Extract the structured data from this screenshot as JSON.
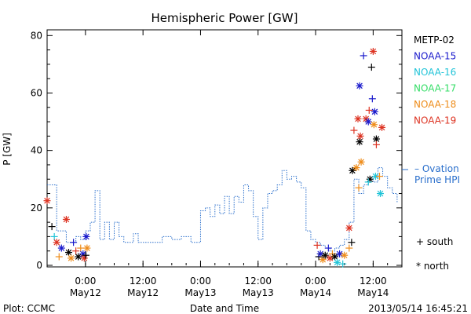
{
  "chart_data": {
    "type": "scatter",
    "title": "Hemispheric Power [GW]",
    "ylabel": "P [GW]",
    "xlabel": "Date and Time",
    "ylim": [
      0,
      82
    ],
    "yticks": [
      0,
      20,
      40,
      60,
      80
    ],
    "xlim": [
      "2013-05-11 16:00",
      "2013-05-14 18:00"
    ],
    "xticks": [
      {
        "time": "2013-05-12 00:00",
        "label1": "0:00",
        "label2": "May12"
      },
      {
        "time": "2013-05-12 12:00",
        "label1": "12:00",
        "label2": "May12"
      },
      {
        "time": "2013-05-13 00:00",
        "label1": "0:00",
        "label2": "May13"
      },
      {
        "time": "2013-05-13 12:00",
        "label1": "12:00",
        "label2": "May13"
      },
      {
        "time": "2013-05-14 00:00",
        "label1": "0:00",
        "label2": "May14"
      },
      {
        "time": "2013-05-14 12:00",
        "label1": "12:00",
        "label2": "May14"
      }
    ],
    "legend": [
      {
        "name": "METP-02",
        "color": "#000000"
      },
      {
        "name": "NOAA-15",
        "color": "#1a1acc"
      },
      {
        "name": "NOAA-16",
        "color": "#22c4d8"
      },
      {
        "name": "NOAA-17",
        "color": "#33dd66"
      },
      {
        "name": "NOAA-18",
        "color": "#ee8c1a"
      },
      {
        "name": "NOAA-19",
        "color": "#dd3322"
      }
    ],
    "ovation": {
      "label_line1": "– Ovation",
      "label_line2": "Prime HPI",
      "color": "#2a6fcc",
      "points": [
        [
          "2013-05-11 16:00",
          28
        ],
        [
          "2013-05-11 18:00",
          12
        ],
        [
          "2013-05-11 20:00",
          8
        ],
        [
          "2013-05-11 22:00",
          10
        ],
        [
          "2013-05-11 23:00",
          9
        ],
        [
          "2013-05-12 00:00",
          12
        ],
        [
          "2013-05-12 01:00",
          15
        ],
        [
          "2013-05-12 02:00",
          26
        ],
        [
          "2013-05-12 03:00",
          9
        ],
        [
          "2013-05-12 04:00",
          15
        ],
        [
          "2013-05-12 05:00",
          9
        ],
        [
          "2013-05-12 06:00",
          15
        ],
        [
          "2013-05-12 07:00",
          10
        ],
        [
          "2013-05-12 08:00",
          8
        ],
        [
          "2013-05-12 10:00",
          11
        ],
        [
          "2013-05-12 11:00",
          8
        ],
        [
          "2013-05-12 14:00",
          8
        ],
        [
          "2013-05-12 16:00",
          10
        ],
        [
          "2013-05-12 18:00",
          9
        ],
        [
          "2013-05-12 20:00",
          10
        ],
        [
          "2013-05-12 22:00",
          8
        ],
        [
          "2013-05-13 00:00",
          19
        ],
        [
          "2013-05-13 01:00",
          20
        ],
        [
          "2013-05-13 02:00",
          17
        ],
        [
          "2013-05-13 03:00",
          21
        ],
        [
          "2013-05-13 04:00",
          18
        ],
        [
          "2013-05-13 05:00",
          24
        ],
        [
          "2013-05-13 06:00",
          18
        ],
        [
          "2013-05-13 07:00",
          24
        ],
        [
          "2013-05-13 08:00",
          22
        ],
        [
          "2013-05-13 09:00",
          28
        ],
        [
          "2013-05-13 10:00",
          26
        ],
        [
          "2013-05-13 11:00",
          17
        ],
        [
          "2013-05-13 12:00",
          9
        ],
        [
          "2013-05-13 13:00",
          20
        ],
        [
          "2013-05-13 14:00",
          25
        ],
        [
          "2013-05-13 15:00",
          26
        ],
        [
          "2013-05-13 16:00",
          28
        ],
        [
          "2013-05-13 17:00",
          33
        ],
        [
          "2013-05-13 18:00",
          30
        ],
        [
          "2013-05-13 19:00",
          31
        ],
        [
          "2013-05-13 20:00",
          29
        ],
        [
          "2013-05-13 21:00",
          27
        ],
        [
          "2013-05-13 22:00",
          12
        ],
        [
          "2013-05-13 23:00",
          9
        ],
        [
          "2013-05-14 00:00",
          8
        ],
        [
          "2013-05-14 01:00",
          7
        ],
        [
          "2013-05-14 02:00",
          6
        ],
        [
          "2013-05-14 03:00",
          5
        ],
        [
          "2013-05-14 04:00",
          6
        ],
        [
          "2013-05-14 05:00",
          7
        ],
        [
          "2013-05-14 06:00",
          9
        ],
        [
          "2013-05-14 07:00",
          15
        ],
        [
          "2013-05-14 08:00",
          30
        ],
        [
          "2013-05-14 09:00",
          25
        ],
        [
          "2013-05-14 10:00",
          28
        ],
        [
          "2013-05-14 11:00",
          30
        ],
        [
          "2013-05-14 12:00",
          29
        ],
        [
          "2013-05-14 13:00",
          34
        ],
        [
          "2013-05-14 14:00",
          31
        ],
        [
          "2013-05-14 15:00",
          27
        ],
        [
          "2013-05-14 16:00",
          25
        ],
        [
          "2013-05-14 17:00",
          22
        ]
      ]
    },
    "markers": {
      "south_label": "+ south",
      "north_label": "* north"
    },
    "satellite_points": [
      {
        "sat": "NOAA-19",
        "hemi": "north",
        "t": "2013-05-11 16:00",
        "y": 22.5
      },
      {
        "sat": "METP-02",
        "hemi": "south",
        "t": "2013-05-11 17:00",
        "y": 13.5
      },
      {
        "sat": "NOAA-16",
        "hemi": "south",
        "t": "2013-05-11 17:30",
        "y": 10
      },
      {
        "sat": "NOAA-19",
        "hemi": "north",
        "t": "2013-05-11 18:00",
        "y": 8
      },
      {
        "sat": "NOAA-18",
        "hemi": "south",
        "t": "2013-05-11 18:30",
        "y": 3
      },
      {
        "sat": "NOAA-15",
        "hemi": "north",
        "t": "2013-05-11 19:00",
        "y": 6
      },
      {
        "sat": "NOAA-19",
        "hemi": "north",
        "t": "2013-05-11 20:00",
        "y": 16
      },
      {
        "sat": "METP-02",
        "hemi": "north",
        "t": "2013-05-11 20:30",
        "y": 4.5
      },
      {
        "sat": "NOAA-18",
        "hemi": "north",
        "t": "2013-05-11 21:00",
        "y": 2.5
      },
      {
        "sat": "NOAA-15",
        "hemi": "south",
        "t": "2013-05-11 21:30",
        "y": 8
      },
      {
        "sat": "NOAA-19",
        "hemi": "south",
        "t": "2013-05-11 22:00",
        "y": 5
      },
      {
        "sat": "METP-02",
        "hemi": "north",
        "t": "2013-05-11 22:30",
        "y": 3
      },
      {
        "sat": "NOAA-18",
        "hemi": "south",
        "t": "2013-05-11 23:00",
        "y": 6
      },
      {
        "sat": "NOAA-15",
        "hemi": "north",
        "t": "2013-05-11 23:30",
        "y": 4
      },
      {
        "sat": "NOAA-19",
        "hemi": "north",
        "t": "2013-05-11 23:45",
        "y": 2.5
      },
      {
        "sat": "NOAA-15",
        "hemi": "north",
        "t": "2013-05-12 00:10",
        "y": 10
      },
      {
        "sat": "METP-02",
        "hemi": "south",
        "t": "2013-05-12 00:05",
        "y": 3.5
      },
      {
        "sat": "NOAA-18",
        "hemi": "north",
        "t": "2013-05-12 00:20",
        "y": 6
      },
      {
        "sat": "NOAA-19",
        "hemi": "south",
        "t": "2013-05-14 00:20",
        "y": 7
      },
      {
        "sat": "METP-02",
        "hemi": "south",
        "t": "2013-05-14 00:40",
        "y": 3
      },
      {
        "sat": "NOAA-15",
        "hemi": "north",
        "t": "2013-05-14 01:00",
        "y": 4
      },
      {
        "sat": "NOAA-18",
        "hemi": "north",
        "t": "2013-05-14 01:30",
        "y": 2
      },
      {
        "sat": "METP-02",
        "hemi": "north",
        "t": "2013-05-14 02:00",
        "y": 3.5
      },
      {
        "sat": "NOAA-15",
        "hemi": "south",
        "t": "2013-05-14 02:40",
        "y": 6
      },
      {
        "sat": "NOAA-19",
        "hemi": "north",
        "t": "2013-05-14 03:00",
        "y": 2.5
      },
      {
        "sat": "NOAA-18",
        "hemi": "south",
        "t": "2013-05-14 03:30",
        "y": 4
      },
      {
        "sat": "METP-02",
        "hemi": "north",
        "t": "2013-05-14 04:00",
        "y": 3
      },
      {
        "sat": "NOAA-16",
        "hemi": "north",
        "t": "2013-05-14 04:30",
        "y": 1
      },
      {
        "sat": "NOAA-15",
        "hemi": "north",
        "t": "2013-05-14 05:00",
        "y": 4
      },
      {
        "sat": "NOAA-16",
        "hemi": "south",
        "t": "2013-05-14 05:40",
        "y": 0.5
      },
      {
        "sat": "NOAA-18",
        "hemi": "north",
        "t": "2013-05-14 06:00",
        "y": 3.5
      },
      {
        "sat": "NOAA-19",
        "hemi": "north",
        "t": "2013-05-14 07:00",
        "y": 13
      },
      {
        "sat": "METP-02",
        "hemi": "south",
        "t": "2013-05-14 07:30",
        "y": 8
      },
      {
        "sat": "NOAA-18",
        "hemi": "south",
        "t": "2013-05-14 07:00",
        "y": 6
      },
      {
        "sat": "METP-02",
        "hemi": "north",
        "t": "2013-05-14 07:40",
        "y": 33
      },
      {
        "sat": "NOAA-19",
        "hemi": "south",
        "t": "2013-05-14 08:00",
        "y": 47
      },
      {
        "sat": "NOAA-18",
        "hemi": "north",
        "t": "2013-05-14 08:30",
        "y": 34
      },
      {
        "sat": "NOAA-19",
        "hemi": "north",
        "t": "2013-05-14 08:50",
        "y": 51
      },
      {
        "sat": "NOAA-15",
        "hemi": "north",
        "t": "2013-05-14 09:10",
        "y": 62.5
      },
      {
        "sat": "METP-02",
        "hemi": "north",
        "t": "2013-05-14 09:10",
        "y": 43
      },
      {
        "sat": "NOAA-19",
        "hemi": "north",
        "t": "2013-05-14 09:20",
        "y": 45
      },
      {
        "sat": "NOAA-18",
        "hemi": "north",
        "t": "2013-05-14 09:30",
        "y": 36
      },
      {
        "sat": "NOAA-18",
        "hemi": "south",
        "t": "2013-05-14 09:00",
        "y": 27
      },
      {
        "sat": "NOAA-15",
        "hemi": "south",
        "t": "2013-05-14 10:00",
        "y": 73
      },
      {
        "sat": "NOAA-19",
        "hemi": "north",
        "t": "2013-05-14 10:30",
        "y": 51
      },
      {
        "sat": "NOAA-15",
        "hemi": "north",
        "t": "2013-05-14 11:00",
        "y": 50
      },
      {
        "sat": "NOAA-19",
        "hemi": "south",
        "t": "2013-05-14 11:10",
        "y": 54
      },
      {
        "sat": "METP-02",
        "hemi": "north",
        "t": "2013-05-14 11:20",
        "y": 30
      },
      {
        "sat": "NOAA-16",
        "hemi": "south",
        "t": "2013-05-14 11:00",
        "y": 29
      },
      {
        "sat": "METP-02",
        "hemi": "south",
        "t": "2013-05-14 11:40",
        "y": 69
      },
      {
        "sat": "NOAA-15",
        "hemi": "south",
        "t": "2013-05-14 11:50",
        "y": 58
      },
      {
        "sat": "NOAA-19",
        "hemi": "north",
        "t": "2013-05-14 12:00",
        "y": 74.5
      },
      {
        "sat": "NOAA-18",
        "hemi": "north",
        "t": "2013-05-14 12:10",
        "y": 49
      },
      {
        "sat": "NOAA-15",
        "hemi": "north",
        "t": "2013-05-14 12:20",
        "y": 53.5
      },
      {
        "sat": "NOAA-16",
        "hemi": "north",
        "t": "2013-05-14 12:30",
        "y": 31
      },
      {
        "sat": "METP-02",
        "hemi": "north",
        "t": "2013-05-14 12:40",
        "y": 44
      },
      {
        "sat": "NOAA-19",
        "hemi": "south",
        "t": "2013-05-14 12:40",
        "y": 42
      },
      {
        "sat": "NOAA-18",
        "hemi": "south",
        "t": "2013-05-14 13:20",
        "y": 31
      },
      {
        "sat": "NOAA-16",
        "hemi": "north",
        "t": "2013-05-14 13:30",
        "y": 25
      },
      {
        "sat": "NOAA-19",
        "hemi": "north",
        "t": "2013-05-14 13:50",
        "y": 48
      }
    ]
  },
  "footer": {
    "plot_credit": "Plot: CCMC",
    "timestamp": "2013/05/14 16:45:21"
  }
}
